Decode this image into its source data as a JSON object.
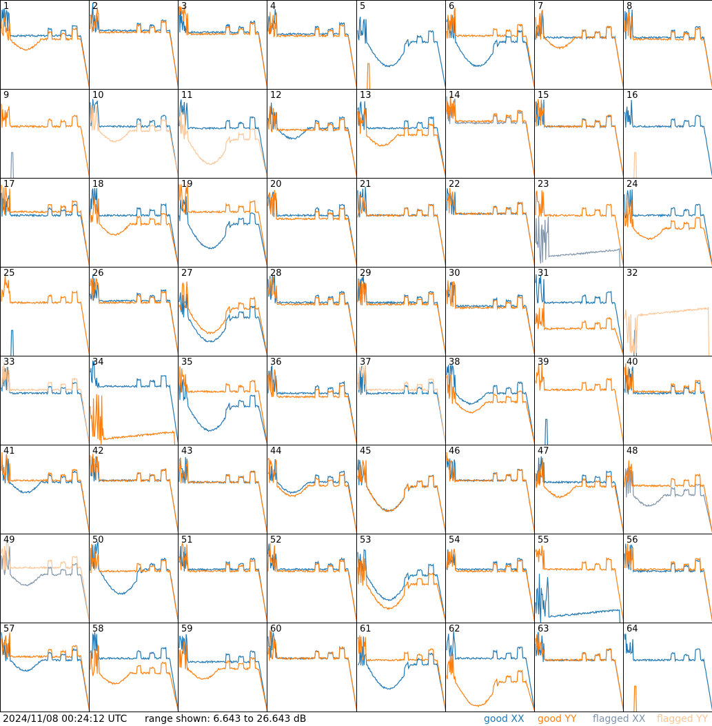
{
  "footer": {
    "timestamp": "2024/11/08 00:24:12 UTC",
    "range_text": "range shown: 6.643 to 26.643 dB"
  },
  "legend": [
    {
      "label": "good XX",
      "color": "#1f77b4"
    },
    {
      "label": "good YY",
      "color": "#ff7f0e"
    },
    {
      "label": "flagged XX",
      "color": "#7f94aa"
    },
    {
      "label": "flagged YY",
      "color": "#fcc595"
    }
  ],
  "chart_data": {
    "type": "line",
    "layout": "8x8 small multiples",
    "ylim_db": [
      6.643,
      26.643
    ],
    "colors": {
      "good_xx": "#1f77b4",
      "good_yy": "#ff7f0e",
      "flagged_xx": "#7f94aa",
      "flagged_yy": "#fcc595"
    },
    "panels": [
      {
        "id": "1",
        "xx": {
          "shape": "flatA",
          "level": 0.62,
          "flag": false
        },
        "yy": {
          "shape": "dip",
          "level": 0.58,
          "flag": false
        }
      },
      {
        "id": "2",
        "xx": {
          "shape": "flatA",
          "level": 0.68,
          "flag": false
        },
        "yy": {
          "shape": "flatA",
          "level": 0.66,
          "flag": false
        }
      },
      {
        "id": "3",
        "xx": {
          "shape": "flatA",
          "level": 0.66,
          "flag": false
        },
        "yy": {
          "shape": "flatA",
          "level": 0.64,
          "flag": false
        }
      },
      {
        "id": "4",
        "xx": {
          "shape": "flatA",
          "level": 0.64,
          "flag": false
        },
        "yy": {
          "shape": "flatA",
          "level": 0.62,
          "flag": false
        }
      },
      {
        "id": "5",
        "xx": {
          "shape": "bigdip",
          "level": 0.55,
          "flag": false
        },
        "yy": {
          "shape": "spike",
          "level": 0.0,
          "flag": false
        }
      },
      {
        "id": "6",
        "xx": {
          "shape": "bigdip",
          "level": 0.55,
          "flag": false
        },
        "yy": {
          "shape": "flatA",
          "level": 0.62,
          "flag": false
        }
      },
      {
        "id": "7",
        "xx": {
          "shape": "flatA",
          "level": 0.6,
          "flag": false
        },
        "yy": {
          "shape": "dip",
          "level": 0.6,
          "flag": false
        }
      },
      {
        "id": "8",
        "xx": {
          "shape": "flatA",
          "level": 0.6,
          "flag": false
        },
        "yy": {
          "shape": "flatA",
          "level": 0.58,
          "flag": false
        }
      },
      {
        "id": "9",
        "xx": {
          "shape": "spike",
          "level": 0.0,
          "flag": true
        },
        "yy": {
          "shape": "flatA",
          "level": 0.6,
          "flag": false
        }
      },
      {
        "id": "10",
        "xx": {
          "shape": "flatA",
          "level": 0.6,
          "flag": false
        },
        "yy": {
          "shape": "dip",
          "level": 0.55,
          "flag": true
        }
      },
      {
        "id": "11",
        "xx": {
          "shape": "flatA",
          "level": 0.58,
          "flag": false
        },
        "yy": {
          "shape": "bigdip",
          "level": 0.45,
          "flag": true
        }
      },
      {
        "id": "12",
        "xx": {
          "shape": "dip",
          "level": 0.58,
          "flag": false
        },
        "yy": {
          "shape": "flatA",
          "level": 0.56,
          "flag": false
        }
      },
      {
        "id": "13",
        "xx": {
          "shape": "flatA",
          "level": 0.58,
          "flag": false
        },
        "yy": {
          "shape": "dip",
          "level": 0.5,
          "flag": false
        }
      },
      {
        "id": "14",
        "xx": {
          "shape": "flatA",
          "level": 0.64,
          "flag": true
        },
        "yy": {
          "shape": "flatA",
          "level": 0.66,
          "flag": false
        }
      },
      {
        "id": "15",
        "xx": {
          "shape": "flatA",
          "level": 0.6,
          "flag": false
        },
        "yy": {
          "shape": "flatA",
          "level": 0.6,
          "flag": false
        }
      },
      {
        "id": "16",
        "xx": {
          "shape": "flatA",
          "level": 0.6,
          "flag": false
        },
        "yy": {
          "shape": "spike",
          "level": 0.0,
          "flag": true
        }
      },
      {
        "id": "17",
        "xx": {
          "shape": "flatA",
          "level": 0.6,
          "flag": false
        },
        "yy": {
          "shape": "flatA",
          "level": 0.64,
          "flag": false
        }
      },
      {
        "id": "18",
        "xx": {
          "shape": "flatA",
          "level": 0.6,
          "flag": false
        },
        "yy": {
          "shape": "dip",
          "level": 0.5,
          "flag": false
        }
      },
      {
        "id": "19",
        "xx": {
          "shape": "bigdip",
          "level": 0.5,
          "flag": false
        },
        "yy": {
          "shape": "flatA",
          "level": 0.64,
          "flag": false
        }
      },
      {
        "id": "20",
        "xx": {
          "shape": "flatA",
          "level": 0.6,
          "flag": false
        },
        "yy": {
          "shape": "flatA",
          "level": 0.56,
          "flag": false
        }
      },
      {
        "id": "21",
        "xx": {
          "shape": "flatA",
          "level": 0.6,
          "flag": false
        },
        "yy": {
          "shape": "flatA",
          "level": 0.6,
          "flag": false
        }
      },
      {
        "id": "22",
        "xx": {
          "shape": "flatA",
          "level": 0.62,
          "flag": false
        },
        "yy": {
          "shape": "flatA",
          "level": 0.62,
          "flag": false
        }
      },
      {
        "id": "23",
        "xx": {
          "shape": "noise",
          "level": 0.1,
          "flag": true
        },
        "yy": {
          "shape": "flatA",
          "level": 0.6,
          "flag": false
        }
      },
      {
        "id": "24",
        "xx": {
          "shape": "flatA",
          "level": 0.6,
          "flag": false
        },
        "yy": {
          "shape": "dip",
          "level": 0.45,
          "flag": false
        }
      },
      {
        "id": "25",
        "xx": {
          "shape": "spike",
          "level": 0.0,
          "flag": false
        },
        "yy": {
          "shape": "flatA",
          "level": 0.62,
          "flag": false
        }
      },
      {
        "id": "26",
        "xx": {
          "shape": "flatA",
          "level": 0.64,
          "flag": false
        },
        "yy": {
          "shape": "flatA",
          "level": 0.62,
          "flag": false
        }
      },
      {
        "id": "27",
        "xx": {
          "shape": "bigdip",
          "level": 0.45,
          "flag": false
        },
        "yy": {
          "shape": "bigdip",
          "level": 0.55,
          "flag": false
        }
      },
      {
        "id": "28",
        "xx": {
          "shape": "flatA",
          "level": 0.62,
          "flag": false
        },
        "yy": {
          "shape": "flatA",
          "level": 0.6,
          "flag": false
        }
      },
      {
        "id": "29",
        "xx": {
          "shape": "flatA",
          "level": 0.62,
          "flag": false
        },
        "yy": {
          "shape": "flatA",
          "level": 0.6,
          "flag": false
        }
      },
      {
        "id": "30",
        "xx": {
          "shape": "flatA",
          "level": 0.58,
          "flag": false
        },
        "yy": {
          "shape": "flatA",
          "level": 0.56,
          "flag": false
        }
      },
      {
        "id": "31",
        "xx": {
          "shape": "flatA",
          "level": 0.62,
          "flag": false
        },
        "yy": {
          "shape": "flatA",
          "level": 0.32,
          "flag": false
        }
      },
      {
        "id": "32",
        "xx": {
          "shape": "spike",
          "level": 0.0,
          "flag": false
        },
        "yy": {
          "shape": "noise",
          "level": 0.45,
          "flag": true
        }
      },
      {
        "id": "33",
        "xx": {
          "shape": "flatA",
          "level": 0.6,
          "flag": false
        },
        "yy": {
          "shape": "flatA",
          "level": 0.64,
          "flag": true
        }
      },
      {
        "id": "34",
        "xx": {
          "shape": "flatA",
          "level": 0.68,
          "flag": false
        },
        "yy": {
          "shape": "noise",
          "level": 0.05,
          "flag": false
        }
      },
      {
        "id": "35",
        "xx": {
          "shape": "bigdip",
          "level": 0.45,
          "flag": false
        },
        "yy": {
          "shape": "flatA",
          "level": 0.62,
          "flag": false
        }
      },
      {
        "id": "36",
        "xx": {
          "shape": "flatA",
          "level": 0.6,
          "flag": false
        },
        "yy": {
          "shape": "flatA",
          "level": 0.56,
          "flag": false
        }
      },
      {
        "id": "37",
        "xx": {
          "shape": "flatA",
          "level": 0.6,
          "flag": false
        },
        "yy": {
          "shape": "flatA",
          "level": 0.64,
          "flag": true
        }
      },
      {
        "id": "38",
        "xx": {
          "shape": "dip",
          "level": 0.6,
          "flag": false
        },
        "yy": {
          "shape": "dip",
          "level": 0.5,
          "flag": false
        }
      },
      {
        "id": "39",
        "xx": {
          "shape": "spike",
          "level": 0.0,
          "flag": false
        },
        "yy": {
          "shape": "flatA",
          "level": 0.64,
          "flag": false
        }
      },
      {
        "id": "40",
        "xx": {
          "shape": "flatA",
          "level": 0.6,
          "flag": false
        },
        "yy": {
          "shape": "flatA",
          "level": 0.62,
          "flag": false
        }
      },
      {
        "id": "41",
        "xx": {
          "shape": "dip",
          "level": 0.6,
          "flag": false
        },
        "yy": {
          "shape": "flatA",
          "level": 0.62,
          "flag": false
        }
      },
      {
        "id": "42",
        "xx": {
          "shape": "flatA",
          "level": 0.62,
          "flag": false
        },
        "yy": {
          "shape": "flatA",
          "level": 0.62,
          "flag": false
        }
      },
      {
        "id": "43",
        "xx": {
          "shape": "flatA",
          "level": 0.6,
          "flag": false
        },
        "yy": {
          "shape": "flatA",
          "level": 0.6,
          "flag": false
        }
      },
      {
        "id": "44",
        "xx": {
          "shape": "dip",
          "level": 0.6,
          "flag": false
        },
        "yy": {
          "shape": "dip",
          "level": 0.56,
          "flag": false
        }
      },
      {
        "id": "45",
        "xx": {
          "shape": "bigdip",
          "level": 0.55,
          "flag": false
        },
        "yy": {
          "shape": "bigdip",
          "level": 0.55,
          "flag": false
        }
      },
      {
        "id": "46",
        "xx": {
          "shape": "flatA",
          "level": 0.62,
          "flag": false
        },
        "yy": {
          "shape": "flatA",
          "level": 0.62,
          "flag": false
        }
      },
      {
        "id": "47",
        "xx": {
          "shape": "flatA",
          "level": 0.6,
          "flag": false
        },
        "yy": {
          "shape": "dip",
          "level": 0.55,
          "flag": false
        }
      },
      {
        "id": "48",
        "xx": {
          "shape": "dip",
          "level": 0.45,
          "flag": true
        },
        "yy": {
          "shape": "flatA",
          "level": 0.56,
          "flag": false
        }
      },
      {
        "id": "49",
        "xx": {
          "shape": "dip",
          "level": 0.56,
          "flag": true
        },
        "yy": {
          "shape": "flatA",
          "level": 0.64,
          "flag": true
        }
      },
      {
        "id": "50",
        "xx": {
          "shape": "bigdip",
          "level": 0.62,
          "flag": false
        },
        "yy": {
          "shape": "flatA",
          "level": 0.6,
          "flag": false
        }
      },
      {
        "id": "51",
        "xx": {
          "shape": "flatA",
          "level": 0.62,
          "flag": false
        },
        "yy": {
          "shape": "flatA",
          "level": 0.6,
          "flag": false
        }
      },
      {
        "id": "52",
        "xx": {
          "shape": "flatA",
          "level": 0.62,
          "flag": false
        },
        "yy": {
          "shape": "flatA",
          "level": 0.6,
          "flag": false
        }
      },
      {
        "id": "53",
        "xx": {
          "shape": "bigdip",
          "level": 0.55,
          "flag": false
        },
        "yy": {
          "shape": "bigdip",
          "level": 0.45,
          "flag": false
        }
      },
      {
        "id": "54",
        "xx": {
          "shape": "flatA",
          "level": 0.62,
          "flag": false
        },
        "yy": {
          "shape": "flatA",
          "level": 0.6,
          "flag": false
        }
      },
      {
        "id": "55",
        "xx": {
          "shape": "noise",
          "level": 0.05,
          "flag": false
        },
        "yy": {
          "shape": "flatA",
          "level": 0.62,
          "flag": false
        }
      },
      {
        "id": "56",
        "xx": {
          "shape": "flatA",
          "level": 0.6,
          "flag": false
        },
        "yy": {
          "shape": "flatA",
          "level": 0.62,
          "flag": false
        }
      },
      {
        "id": "57",
        "xx": {
          "shape": "dip",
          "level": 0.6,
          "flag": false
        },
        "yy": {
          "shape": "flatA",
          "level": 0.64,
          "flag": false
        }
      },
      {
        "id": "58",
        "xx": {
          "shape": "flatA",
          "level": 0.62,
          "flag": false
        },
        "yy": {
          "shape": "dip",
          "level": 0.45,
          "flag": false
        }
      },
      {
        "id": "59",
        "xx": {
          "shape": "flatA",
          "level": 0.58,
          "flag": false
        },
        "yy": {
          "shape": "dip",
          "level": 0.5,
          "flag": false
        }
      },
      {
        "id": "60",
        "xx": {
          "shape": "flatA",
          "level": 0.62,
          "flag": false
        },
        "yy": {
          "shape": "flatA",
          "level": 0.62,
          "flag": false
        }
      },
      {
        "id": "61",
        "xx": {
          "shape": "bigdip",
          "level": 0.55,
          "flag": false
        },
        "yy": {
          "shape": "flatA",
          "level": 0.6,
          "flag": false
        }
      },
      {
        "id": "62",
        "xx": {
          "shape": "flatA",
          "level": 0.62,
          "flag": false
        },
        "yy": {
          "shape": "bigdip",
          "level": 0.35,
          "flag": false
        }
      },
      {
        "id": "63",
        "xx": {
          "shape": "flatA",
          "level": 0.6,
          "flag": false
        },
        "yy": {
          "shape": "flatA",
          "level": 0.6,
          "flag": false
        }
      },
      {
        "id": "64",
        "xx": {
          "shape": "flatA",
          "level": 0.6,
          "flag": false
        },
        "yy": {
          "shape": "spike",
          "level": 0.0,
          "flag": false
        }
      }
    ]
  }
}
